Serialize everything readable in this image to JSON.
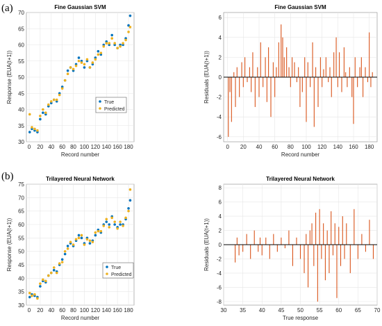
{
  "panel_labels": [
    "(a)",
    "(b)"
  ],
  "colors": {
    "true": "#0072BD",
    "predicted": "#EDB120",
    "residual": "#D95319",
    "grid": "#e6e6e6",
    "zero_line": "#000000"
  },
  "chart_data": [
    {
      "type": "scatter",
      "title": "Fine Gaussian SVM",
      "xlabel": "Record number",
      "ylabel": "Response (EUA(t+1))",
      "xlim": [
        -5,
        190
      ],
      "ylim": [
        30,
        70
      ],
      "xticks": [
        0,
        20,
        40,
        60,
        80,
        100,
        120,
        140,
        160,
        180
      ],
      "yticks": [
        30,
        35,
        40,
        45,
        50,
        55,
        60,
        65,
        70
      ],
      "grid": true,
      "legend_position": "center",
      "series": [
        {
          "name": "True",
          "x": [
            1,
            5,
            10,
            15,
            20,
            25,
            30,
            35,
            40,
            45,
            50,
            55,
            60,
            65,
            70,
            75,
            80,
            85,
            90,
            95,
            100,
            105,
            110,
            115,
            120,
            125,
            130,
            135,
            140,
            145,
            150,
            155,
            160,
            165,
            170,
            175,
            180,
            183
          ],
          "values": [
            33,
            34,
            33.5,
            33,
            37,
            39,
            38.5,
            41,
            42,
            43,
            42.5,
            45,
            47,
            49,
            52,
            53,
            52,
            54,
            56,
            55,
            53,
            55,
            53,
            54,
            56,
            58,
            57,
            60,
            61,
            60,
            63,
            60,
            59,
            60,
            60,
            62,
            66,
            69
          ]
        },
        {
          "name": "Predicted",
          "x": [
            1,
            5,
            10,
            15,
            20,
            25,
            30,
            35,
            40,
            45,
            50,
            55,
            60,
            65,
            70,
            75,
            80,
            85,
            90,
            95,
            100,
            105,
            110,
            115,
            120,
            125,
            130,
            135,
            140,
            145,
            150,
            155,
            160,
            165,
            170,
            175,
            180,
            183
          ],
          "values": [
            38.5,
            34.5,
            34,
            33.5,
            38,
            40,
            39,
            41.5,
            42.5,
            43,
            43,
            44.5,
            46.5,
            49,
            51,
            53,
            52.5,
            53.5,
            55,
            54.5,
            54,
            55.5,
            53,
            54.5,
            55.5,
            57,
            57.5,
            59.5,
            60.5,
            60.5,
            62,
            60.5,
            59,
            59.5,
            60.5,
            61.5,
            64,
            65.5
          ]
        }
      ]
    },
    {
      "type": "bar",
      "title": "Fine Gaussian SVM",
      "xlabel": "Record number",
      "ylabel": "Residuals (EUA(t+1))",
      "xlim": [
        -5,
        190
      ],
      "ylim": [
        -6.5,
        6.5
      ],
      "xticks": [
        0,
        20,
        40,
        60,
        80,
        100,
        120,
        140,
        160,
        180
      ],
      "yticks": [
        -6,
        -4,
        -2,
        0,
        2,
        4,
        6
      ],
      "grid": true,
      "x": [
        1,
        3,
        5,
        8,
        10,
        12,
        15,
        18,
        20,
        22,
        25,
        28,
        30,
        32,
        35,
        38,
        40,
        42,
        45,
        48,
        50,
        52,
        55,
        58,
        60,
        62,
        65,
        68,
        70,
        72,
        75,
        78,
        80,
        82,
        85,
        88,
        90,
        92,
        95,
        98,
        100,
        102,
        105,
        108,
        110,
        112,
        115,
        118,
        120,
        122,
        125,
        128,
        130,
        132,
        135,
        138,
        140,
        142,
        145,
        148,
        150,
        152,
        155,
        158,
        160,
        162,
        165,
        168,
        170,
        172,
        175,
        178,
        180,
        182,
        184
      ],
      "values": [
        -6,
        -1.5,
        -4.5,
        0.5,
        -3,
        1,
        -2,
        1.5,
        -1,
        2,
        -0.5,
        1,
        -1.5,
        2.5,
        -3,
        1,
        -2,
        3.5,
        -1,
        2,
        -2.5,
        3,
        -4,
        1.5,
        -2,
        1,
        3.5,
        5.3,
        4,
        2,
        3,
        1,
        -1,
        2,
        1.5,
        -0.5,
        1,
        -3,
        -1.5,
        2,
        -4.5,
        1.5,
        -1,
        3.5,
        -5,
        1,
        -3,
        2,
        -1,
        0.8,
        2,
        -0.5,
        1,
        -2,
        2.5,
        4,
        -1,
        2.5,
        -1.5,
        3,
        0.5,
        -1,
        1,
        -2,
        -4.7,
        2,
        -1,
        1,
        2,
        -2,
        1,
        -0.5,
        4.5,
        -1,
        0.5
      ]
    },
    {
      "type": "scatter",
      "title": "Trilayered Neural Network",
      "xlabel": "Record number",
      "ylabel": "Response (EUA(t+1))",
      "xlim": [
        -5,
        190
      ],
      "ylim": [
        30,
        75
      ],
      "xticks": [
        0,
        20,
        40,
        60,
        80,
        100,
        120,
        140,
        160,
        180
      ],
      "yticks": [
        30,
        35,
        40,
        45,
        50,
        55,
        60,
        65,
        70,
        75
      ],
      "grid": true,
      "legend_position": "center-right",
      "series": [
        {
          "name": "True",
          "x": [
            1,
            5,
            10,
            15,
            20,
            25,
            30,
            35,
            40,
            45,
            50,
            55,
            60,
            65,
            70,
            75,
            80,
            85,
            90,
            95,
            100,
            105,
            110,
            115,
            120,
            125,
            130,
            135,
            140,
            145,
            150,
            155,
            160,
            165,
            170,
            175,
            180,
            183
          ],
          "values": [
            33,
            34,
            33.5,
            33,
            37,
            39,
            38.5,
            41,
            42,
            43,
            42.5,
            45,
            47,
            49,
            52,
            53,
            52,
            54,
            56,
            55,
            53,
            55,
            53,
            54,
            56,
            58,
            57,
            60,
            61,
            60,
            63,
            60,
            59,
            60,
            60,
            62,
            66,
            69
          ]
        },
        {
          "name": "Predicted",
          "x": [
            1,
            5,
            10,
            15,
            20,
            25,
            30,
            35,
            40,
            45,
            50,
            55,
            60,
            65,
            70,
            75,
            80,
            85,
            90,
            95,
            100,
            105,
            110,
            115,
            120,
            125,
            130,
            135,
            140,
            145,
            150,
            155,
            160,
            165,
            170,
            175,
            180,
            183
          ],
          "values": [
            34.5,
            33.5,
            34,
            32.5,
            38,
            39.5,
            39,
            41,
            42,
            44,
            42,
            45.5,
            46,
            50,
            51,
            53.5,
            52.5,
            54.5,
            55,
            56,
            52.5,
            54.5,
            54,
            53.5,
            57,
            57.5,
            57.5,
            59.5,
            62,
            59,
            62.5,
            61,
            58.5,
            61,
            59.5,
            62.5,
            65,
            73
          ]
        }
      ]
    },
    {
      "type": "bar",
      "title": "Trilayered Neural Network",
      "xlabel": "True response",
      "ylabel": "Residuals (EUA(t+1))",
      "xlim": [
        30,
        70
      ],
      "ylim": [
        -8.5,
        8.5
      ],
      "xticks": [
        30,
        35,
        40,
        45,
        50,
        55,
        60,
        65,
        70
      ],
      "yticks": [
        -8,
        -6,
        -4,
        -2,
        0,
        2,
        4,
        6,
        8
      ],
      "grid": true,
      "x": [
        33,
        33.5,
        34,
        35,
        36,
        37,
        38,
        39,
        39.5,
        40,
        41,
        42,
        43,
        44,
        45,
        46,
        47,
        48,
        49,
        50,
        51,
        51.5,
        52,
        52.5,
        53,
        53.5,
        54,
        54.5,
        55,
        55.5,
        56,
        56.5,
        57,
        57.5,
        58,
        58.5,
        59,
        59.5,
        60,
        60.5,
        61,
        61.5,
        62,
        63,
        64,
        65,
        66,
        67,
        68,
        69
      ],
      "values": [
        -2.5,
        1,
        -1.5,
        -1,
        1.5,
        -2,
        2,
        -1,
        1,
        -1.5,
        1,
        -2,
        1.5,
        -1,
        1,
        -0.5,
        2,
        -3,
        1,
        -2,
        -4,
        1.5,
        -6,
        2,
        3,
        -3,
        4.5,
        -8,
        5,
        -2,
        3,
        -5,
        2,
        -4,
        4.7,
        -1.5,
        3,
        -7.5,
        2.5,
        -3,
        4,
        -2,
        3,
        -4,
        5,
        -2,
        1.5,
        -1,
        3.5,
        -2
      ]
    }
  ]
}
